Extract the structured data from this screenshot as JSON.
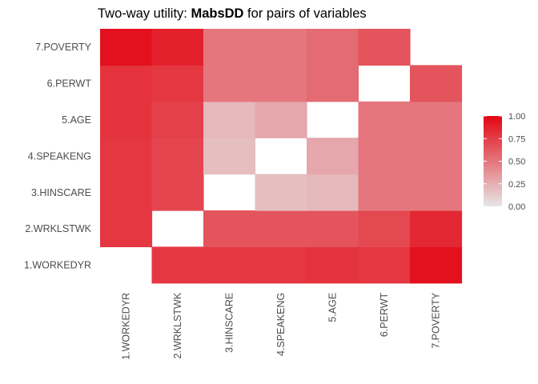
{
  "chart_data": {
    "type": "heatmap",
    "title_prefix": "Two-way utility: ",
    "title_bold": "MabsDD",
    "title_suffix": " for pairs of variables",
    "xlabel": "",
    "ylabel": "",
    "categories": [
      "1.WORKEDYR",
      "2.WRKLSTWK",
      "3.HINSCARE",
      "4.SPEAKENG",
      "5.AGE",
      "6.PERWT",
      "7.POVERTY"
    ],
    "values": [
      [
        null,
        0.78,
        0.78,
        0.78,
        0.8,
        0.8,
        0.95
      ],
      [
        0.78,
        null,
        0.72,
        0.72,
        0.74,
        0.78,
        0.88
      ],
      [
        0.78,
        0.65,
        null,
        0.18,
        0.2,
        0.5,
        0.5
      ],
      [
        0.78,
        0.65,
        0.18,
        null,
        0.28,
        0.5,
        0.5
      ],
      [
        0.8,
        0.65,
        0.2,
        0.28,
        null,
        0.55,
        0.55
      ],
      [
        0.78,
        0.7,
        0.5,
        0.5,
        0.5,
        null,
        0.65
      ],
      [
        0.95,
        0.85,
        0.5,
        0.5,
        0.5,
        0.65,
        null
      ]
    ],
    "color_range": [
      0,
      1
    ],
    "colors": {
      "low": "#e6e6e6",
      "high": "#e30613"
    },
    "legend": {
      "placement": "right",
      "ticks": [
        {
          "value": 1.0,
          "label": "1.00"
        },
        {
          "value": 0.75,
          "label": "0.75"
        },
        {
          "value": 0.5,
          "label": "0.50"
        },
        {
          "value": 0.25,
          "label": "0.25"
        },
        {
          "value": 0.0,
          "label": "0.00"
        }
      ]
    }
  }
}
